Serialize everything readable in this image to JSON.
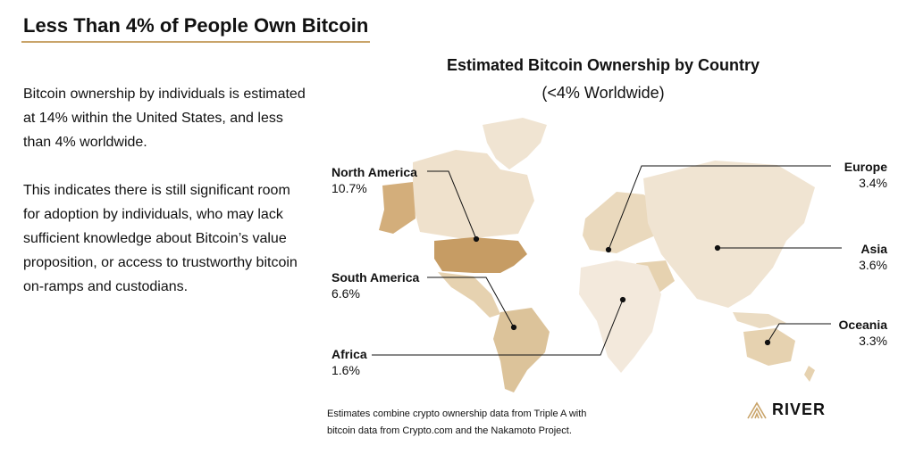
{
  "header": {
    "title": "Less Than 4% of People Own Bitcoin"
  },
  "body": {
    "paragraph1": "Bitcoin ownership by individuals is estimated at 14% within the United States, and less than 4% worldwide.",
    "paragraph2": "This indicates there is still significant room for adoption by individuals, who may lack sufficient knowledge about Bitcoin’s value proposition, or access to trustworthy bitcoin on-ramps and custodians."
  },
  "chart_data": {
    "type": "map",
    "title": "Estimated Bitcoin Ownership by Country",
    "subtitle": "(<4% Worldwide)",
    "unit": "%",
    "regions": [
      {
        "name": "North America",
        "value": 10.7,
        "label": "10.7%"
      },
      {
        "name": "South America",
        "value": 6.6,
        "label": "6.6%"
      },
      {
        "name": "Africa",
        "value": 1.6,
        "label": "1.6%"
      },
      {
        "name": "Europe",
        "value": 3.4,
        "label": "3.4%"
      },
      {
        "name": "Asia",
        "value": 3.6,
        "label": "3.6%"
      },
      {
        "name": "Oceania",
        "value": 3.3,
        "label": "3.3%"
      }
    ],
    "colors": {
      "low": "#f3e9dc",
      "mid": "#e3cda9",
      "high": "#cfa978",
      "highest": "#c29a62"
    }
  },
  "footer": {
    "source_line1": "Estimates combine crypto ownership data from Triple A with",
    "source_line2": "bitcoin data from Crypto.com and the Nakamoto Project.",
    "logo_text": "RIVER",
    "logo_color": "#c9a46a"
  }
}
